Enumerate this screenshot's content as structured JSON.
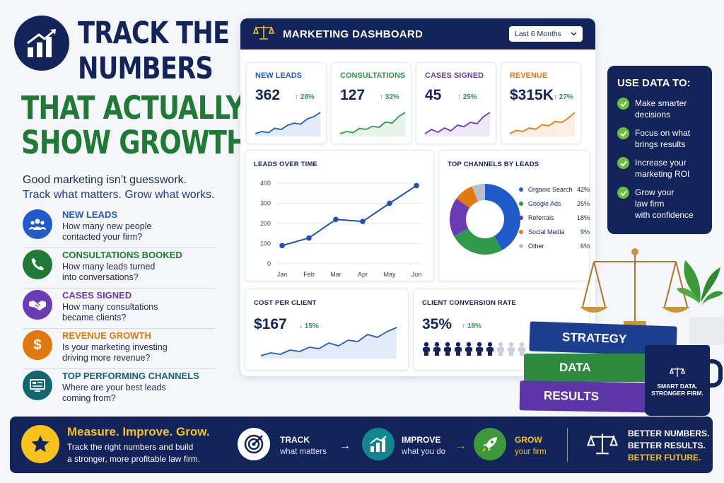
{
  "headline": {
    "line1": "TRACK THE",
    "line2": "NUMBERS",
    "line3": "THAT ACTUALLY",
    "line4": "SHOW GROWTH"
  },
  "intro": {
    "line1": "Good marketing isn’t guesswork.",
    "line2": "Track what matters. Grow what works."
  },
  "features": [
    {
      "title": "NEW LEADS",
      "desc1": "How many new people",
      "desc2": "contacted your firm?",
      "color": "#1f5bc9",
      "icon": "people-icon"
    },
    {
      "title": "CONSULTATIONS BOOKED",
      "desc1": "How many leads turned",
      "desc2": "into conversations?",
      "color": "#1e7a34",
      "icon": "phone-icon"
    },
    {
      "title": "CASES SIGNED",
      "desc1": "How many consultations",
      "desc2": "became clients?",
      "color": "#6a3bb5",
      "icon": "handshake-icon"
    },
    {
      "title": "REVENUE GROWTH",
      "desc1": "Is your marketing investing",
      "desc2": "driving more revenue?",
      "color": "#e07a10",
      "icon": "dollar-icon"
    },
    {
      "title": "TOP PERFORMING CHANNELS",
      "desc1": "Where are your best leads",
      "desc2": "coming from?",
      "color": "#12666e",
      "icon": "monitor-icon"
    }
  ],
  "dashboard": {
    "title": "MARKETING DASHBOARD",
    "range": "Last 6 Months",
    "kpis": [
      {
        "label": "NEW LEADS",
        "value": "362",
        "change": "↑ 28%",
        "color": "#1f5bc9",
        "trend": [
          10,
          12,
          11,
          15,
          14,
          18,
          20,
          19,
          24,
          26,
          30
        ]
      },
      {
        "label": "CONSULTATIONS",
        "value": "127",
        "change": "↑ 32%",
        "color": "#2e9a4a",
        "trend": [
          8,
          10,
          9,
          13,
          12,
          15,
          14,
          19,
          18,
          24,
          28
        ]
      },
      {
        "label": "CASES SIGNED",
        "value": "45",
        "change": "↑ 25%",
        "color": "#6a3bb5",
        "trend": [
          9,
          12,
          10,
          13,
          11,
          15,
          14,
          17,
          16,
          21,
          24
        ]
      },
      {
        "label": "REVENUE",
        "value": "$315K",
        "change": "↑ 27%",
        "color": "#e07a10",
        "trend": [
          8,
          11,
          10,
          13,
          12,
          16,
          15,
          19,
          18,
          22,
          27
        ]
      }
    ],
    "leads_title": "LEADS OVER TIME",
    "channels_title": "TOP CHANNELS BY LEADS",
    "channels": [
      {
        "name": "Organic Search",
        "pct": "42%",
        "value": 42,
        "color": "#1f5bc9"
      },
      {
        "name": "Google Ads",
        "pct": "25%",
        "value": 25,
        "color": "#2e9a4a"
      },
      {
        "name": "Referrals",
        "pct": "18%",
        "value": 18,
        "color": "#6a3bb5"
      },
      {
        "name": "Social Media",
        "pct": "9%",
        "value": 9,
        "color": "#e07a10"
      },
      {
        "name": "Other",
        "pct": "6%",
        "value": 6,
        "color": "#b9bfc9"
      }
    ],
    "cost_title": "COST PER CLIENT",
    "cost_value": "$167",
    "cost_change": "↓ 15%",
    "cost_trend": [
      8,
      10,
      9,
      12,
      11,
      14,
      13,
      17,
      15,
      19,
      18,
      23,
      21,
      25,
      28
    ],
    "conv_title": "CLIENT CONVERSION RATE",
    "conv_value": "35%",
    "conv_change": "↑ 18%",
    "conv_people_filled": 7,
    "conv_people_total": 10
  },
  "chart_data": {
    "type": "line",
    "title": "LEADS OVER TIME",
    "categories": [
      "Jan",
      "Feb",
      "Mar",
      "Apr",
      "May",
      "Jun"
    ],
    "values": [
      90,
      128,
      220,
      210,
      300,
      388
    ],
    "yticks": [
      "0",
      "100",
      "200",
      "300",
      "400"
    ],
    "ylim": [
      0,
      400
    ],
    "grid": true,
    "color": "#1f4fbf"
  },
  "use_data": {
    "title": "USE DATA TO:",
    "items": [
      {
        "l1": "Make smarter",
        "l2": "decisions",
        "l3": ""
      },
      {
        "l1": "Focus on what",
        "l2": "brings results",
        "l3": ""
      },
      {
        "l1": "Increase your",
        "l2": "marketing ROI",
        "l3": ""
      },
      {
        "l1": "Grow your",
        "l2": "law firm",
        "l3": "with confidence"
      }
    ]
  },
  "books": [
    "STRATEGY",
    "DATA",
    "RESULTS"
  ],
  "mug": {
    "l1": "SMART DATA.",
    "l2": "STRONGER FIRM."
  },
  "bottom": {
    "headline": "Measure. Improve. Grow.",
    "line1": "Track the right numbers and build",
    "line2": "a stronger, more profitable law firm.",
    "steps": [
      {
        "title": "TRACK",
        "sub": "what matters",
        "color": "#ffffff"
      },
      {
        "title": "IMPROVE",
        "sub": "what you do",
        "color": "#ffffff"
      },
      {
        "title": "GROW",
        "sub": "your firm",
        "color": "#f7c21b"
      }
    ],
    "right1": "BETTER NUMBERS.",
    "right2": "BETTER RESULTS.",
    "right3": "BETTER FUTURE."
  }
}
